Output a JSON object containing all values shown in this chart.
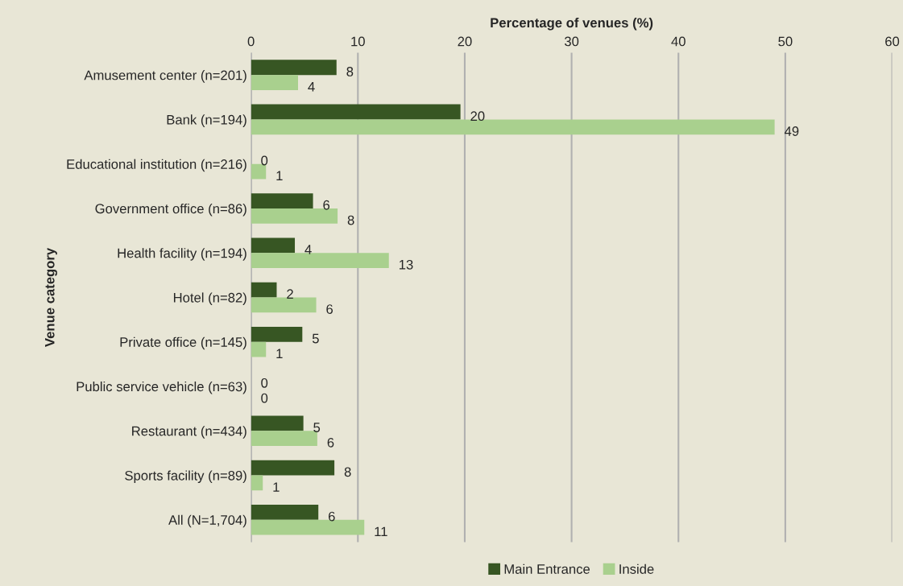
{
  "chart_data": {
    "type": "bar",
    "orientation": "horizontal",
    "xlabel": "Percentage of venues (%)",
    "ylabel": "Venue category",
    "categories": [
      "Amusement center (n=201)",
      "Bank (n=194)",
      "Educational institution (n=216)",
      "Government office (n=86)",
      "Health facility (n=194)",
      "Hotel (n=82)",
      "Private office (n=145)",
      "Public service vehicle (n=63)",
      "Restaurant (n=434)",
      "Sports facility (n=89)",
      "All (N=1,704)"
    ],
    "series": [
      {
        "name": "Main Entrance",
        "color": "#375623",
        "values": [
          8.0,
          19.6,
          0,
          5.8,
          4.1,
          2.4,
          4.8,
          0,
          4.9,
          7.8,
          6.3
        ],
        "value_labels": [
          "8",
          "20",
          "0",
          "6",
          "4",
          "2",
          "5",
          "0",
          "5",
          "8",
          "6"
        ]
      },
      {
        "name": "Inside",
        "color": "#a9d08e",
        "values": [
          4.4,
          49.0,
          1.4,
          8.1,
          12.9,
          6.1,
          1.4,
          0,
          6.2,
          1.1,
          10.6
        ],
        "value_labels": [
          "4",
          "49",
          "1",
          "8",
          "13",
          "6",
          "1",
          "0",
          "6",
          "1",
          "11"
        ]
      }
    ],
    "xlim": [
      0,
      60
    ],
    "xticks": [
      0,
      10,
      20,
      30,
      40,
      50,
      60
    ],
    "grid": "x",
    "legend": "bottom"
  }
}
